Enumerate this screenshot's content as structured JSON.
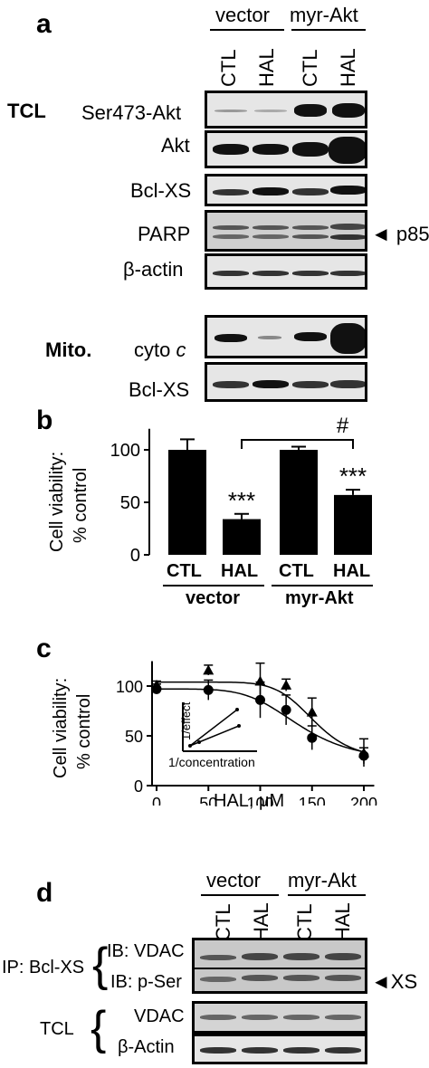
{
  "panel_a": {
    "letter": "a",
    "groups": [
      "vector",
      "myr-Akt"
    ],
    "lanes": [
      "CTL",
      "HAL",
      "CTL",
      "HAL"
    ],
    "section_tcl": "TCL",
    "section_mito": "Mito.",
    "rows": [
      "Ser473-Akt",
      "Akt",
      "Bcl-XS",
      "PARP",
      "β-actin"
    ],
    "mito_rows": [
      "cyto c",
      "Bcl-XS"
    ],
    "arrow_label": "◄ p85"
  },
  "panel_b": {
    "letter": "b",
    "ylabel_line1": "Cell viability:",
    "ylabel_line2": "% control",
    "significance": "#",
    "star_label": "***",
    "group_labels": [
      "vector",
      "myr-Akt"
    ]
  },
  "panel_c": {
    "letter": "c",
    "ylabel_line1": "Cell viability:",
    "ylabel_line2": "% control",
    "xlabel": "HAL, μM",
    "inset_ylabel": "1/effect",
    "inset_xlabel": "1/concentration"
  },
  "panel_d": {
    "letter": "d",
    "groups": [
      "vector",
      "myr-Akt"
    ],
    "lanes": [
      "CTL",
      "HAL",
      "CTL",
      "HAL"
    ],
    "ip_label": "IP: Bcl-XS",
    "tcl_label": "TCL",
    "ib_rows": [
      "IB: VDAC",
      "IB: p-Ser"
    ],
    "tcl_rows": [
      "VDAC",
      "β-Actin"
    ],
    "arrow_label": "◄XS"
  },
  "chart_data": [
    {
      "type": "bar",
      "categories": [
        "CTL",
        "HAL",
        "CTL",
        "HAL"
      ],
      "values": [
        100,
        34,
        100,
        57
      ],
      "errors": [
        10,
        5,
        3,
        5
      ],
      "ylim": [
        0,
        120
      ],
      "yticks": [
        0,
        50,
        100
      ],
      "annotations": [
        "***",
        "***",
        "#"
      ]
    },
    {
      "type": "line",
      "series": [
        {
          "marker": "triangle",
          "x": [
            0,
            50,
            100,
            125,
            150,
            200
          ],
          "y": [
            101,
            116,
            105,
            101,
            74,
            33
          ],
          "err": [
            4,
            5,
            18,
            6,
            14,
            14
          ]
        },
        {
          "marker": "circle",
          "x": [
            0,
            50,
            100,
            125,
            150,
            200
          ],
          "y": [
            97,
            96,
            86,
            76,
            48,
            30
          ],
          "err": [
            5,
            10,
            18,
            15,
            12,
            8
          ]
        }
      ],
      "xlim": [
        0,
        210
      ],
      "ylim": [
        0,
        125
      ],
      "xticks": [
        0,
        50,
        100,
        150,
        200
      ],
      "yticks": [
        0,
        50,
        100
      ]
    }
  ]
}
